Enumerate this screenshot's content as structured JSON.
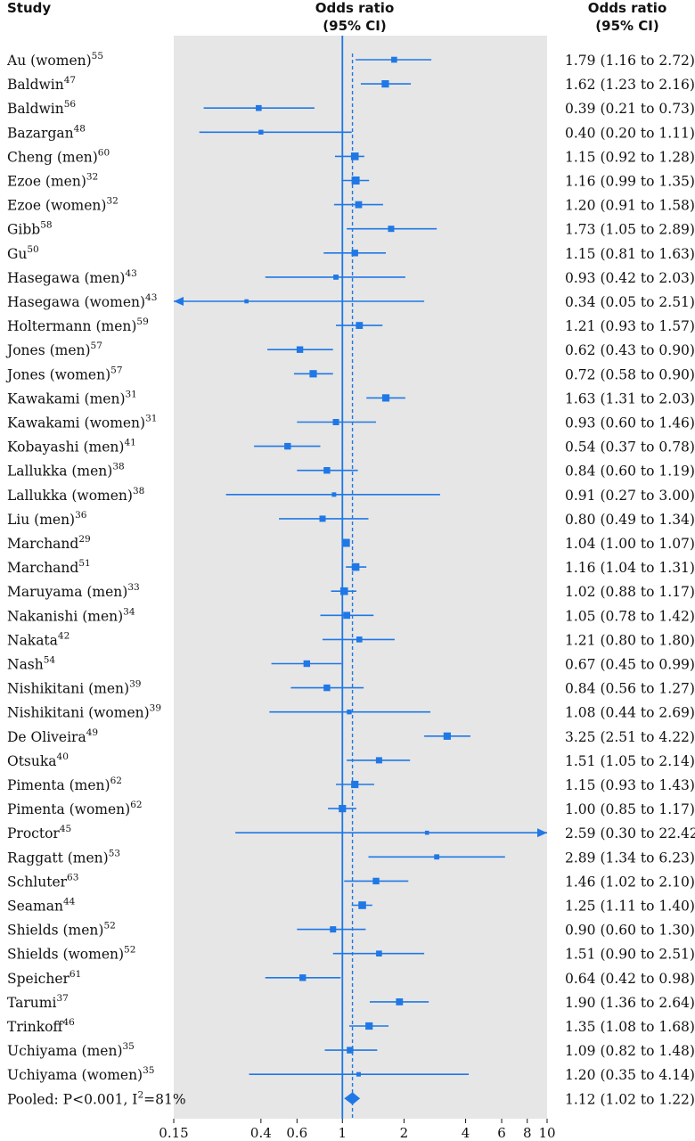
{
  "headers": {
    "study": "Study",
    "plot_line1": "Odds ratio",
    "plot_line2": "(95% CI)",
    "value_line1": "Odds ratio",
    "value_line2": "(95% CI)"
  },
  "colors": {
    "accent": "#1f78e6",
    "panel": "#e6e6e6",
    "text": "#111111"
  },
  "chart_data": {
    "type": "forest",
    "x_scale": "log",
    "xlim": [
      0.15,
      10
    ],
    "xticks": [
      0.15,
      0.4,
      0.6,
      1,
      2,
      4,
      6,
      8,
      10
    ],
    "xtick_labels": [
      "0.15",
      "0.4",
      "0.6",
      "1",
      "2",
      "4",
      "6",
      "8",
      "10"
    ],
    "null_line": 1,
    "pooled_line": 1.12,
    "studies": [
      {
        "name": "Au (women)",
        "ref": "55",
        "or": 1.79,
        "lo": 1.16,
        "hi": 2.72,
        "text": "1.79 (1.16 to 2.72)",
        "w": 0.45
      },
      {
        "name": "Baldwin",
        "ref": "47",
        "or": 1.62,
        "lo": 1.23,
        "hi": 2.16,
        "text": "1.62 (1.23 to 2.16)",
        "w": 0.65
      },
      {
        "name": "Baldwin",
        "ref": "56",
        "or": 0.39,
        "lo": 0.21,
        "hi": 0.73,
        "text": "0.39 (0.21 to 0.73)",
        "w": 0.45
      },
      {
        "name": "Bazargan",
        "ref": "48",
        "or": 0.4,
        "lo": 0.2,
        "hi": 1.11,
        "text": "0.40 (0.20 to 1.11)",
        "w": 0.3
      },
      {
        "name": "Cheng (men)",
        "ref": "60",
        "or": 1.15,
        "lo": 0.92,
        "hi": 1.28,
        "text": "1.15 (0.92 to 1.28)",
        "w": 0.7
      },
      {
        "name": "Ezoe (men)",
        "ref": "32",
        "or": 1.16,
        "lo": 0.99,
        "hi": 1.35,
        "text": "1.16 (0.99 to 1.35)",
        "w": 0.75
      },
      {
        "name": "Ezoe (women)",
        "ref": "32",
        "or": 1.2,
        "lo": 0.91,
        "hi": 1.58,
        "text": "1.20 (0.91 to 1.58)",
        "w": 0.6
      },
      {
        "name": "Gibb",
        "ref": "58",
        "or": 1.73,
        "lo": 1.05,
        "hi": 2.89,
        "text": "1.73 (1.05 to 2.89)",
        "w": 0.5
      },
      {
        "name": "Gu",
        "ref": "50",
        "or": 1.15,
        "lo": 0.81,
        "hi": 1.63,
        "text": "1.15 (0.81 to 1.63)",
        "w": 0.55
      },
      {
        "name": "Hasegawa (men)",
        "ref": "43",
        "or": 0.93,
        "lo": 0.42,
        "hi": 2.03,
        "text": "0.93 (0.42 to 2.03)",
        "w": 0.35
      },
      {
        "name": "Hasegawa (women)",
        "ref": "43",
        "or": 0.34,
        "lo": 0.05,
        "hi": 2.51,
        "text": "0.34 (0.05 to 2.51)",
        "w": 0.2
      },
      {
        "name": "Holtermann (men)",
        "ref": "59",
        "or": 1.21,
        "lo": 0.93,
        "hi": 1.57,
        "text": "1.21 (0.93 to 1.57)",
        "w": 0.6
      },
      {
        "name": "Jones (men)",
        "ref": "57",
        "or": 0.62,
        "lo": 0.43,
        "hi": 0.9,
        "text": "0.62 (0.43 to 0.90)",
        "w": 0.55
      },
      {
        "name": "Jones (women)",
        "ref": "57",
        "or": 0.72,
        "lo": 0.58,
        "hi": 0.9,
        "text": "0.72 (0.58 to 0.90)",
        "w": 0.65
      },
      {
        "name": "Kawakami (men)",
        "ref": "31",
        "or": 1.63,
        "lo": 1.31,
        "hi": 2.03,
        "text": "1.63 (1.31 to 2.03)",
        "w": 0.65
      },
      {
        "name": "Kawakami (women)",
        "ref": "31",
        "or": 0.93,
        "lo": 0.6,
        "hi": 1.46,
        "text": "0.93 (0.60 to 1.46)",
        "w": 0.5
      },
      {
        "name": "Kobayashi (men)",
        "ref": "41",
        "or": 0.54,
        "lo": 0.37,
        "hi": 0.78,
        "text": "0.54 (0.37 to 0.78)",
        "w": 0.55
      },
      {
        "name": "Lallukka (men)",
        "ref": "38",
        "or": 0.84,
        "lo": 0.6,
        "hi": 1.19,
        "text": "0.84 (0.60 to 1.19)",
        "w": 0.55
      },
      {
        "name": "Lallukka (women)",
        "ref": "38",
        "or": 0.91,
        "lo": 0.27,
        "hi": 3.0,
        "text": "0.91 (0.27 to 3.00)",
        "w": 0.25
      },
      {
        "name": "Liu (men)",
        "ref": "36",
        "or": 0.8,
        "lo": 0.49,
        "hi": 1.34,
        "text": "0.80 (0.49 to 1.34)",
        "w": 0.5
      },
      {
        "name": "Marchand",
        "ref": "29",
        "or": 1.04,
        "lo": 1.0,
        "hi": 1.07,
        "text": "1.04 (1.00 to 1.07)",
        "w": 0.75
      },
      {
        "name": "Marchand",
        "ref": "51",
        "or": 1.16,
        "lo": 1.04,
        "hi": 1.31,
        "text": "1.16 (1.04 to 1.31)",
        "w": 0.7
      },
      {
        "name": "Maruyama (men)",
        "ref": "33",
        "or": 1.02,
        "lo": 0.88,
        "hi": 1.17,
        "text": "1.02 (0.88 to 1.17)",
        "w": 0.7
      },
      {
        "name": "Nakanishi (men)",
        "ref": "34",
        "or": 1.05,
        "lo": 0.78,
        "hi": 1.42,
        "text": "1.05 (0.78 to 1.42)",
        "w": 0.6
      },
      {
        "name": "Nakata",
        "ref": "42",
        "or": 1.21,
        "lo": 0.8,
        "hi": 1.8,
        "text": "1.21 (0.80 to 1.80)",
        "w": 0.45
      },
      {
        "name": "Nash",
        "ref": "54",
        "or": 0.67,
        "lo": 0.45,
        "hi": 0.99,
        "text": "0.67 (0.45 to 0.99)",
        "w": 0.55
      },
      {
        "name": "Nishikitani (men)",
        "ref": "39",
        "or": 0.84,
        "lo": 0.56,
        "hi": 1.27,
        "text": "0.84 (0.56 to 1.27)",
        "w": 0.55
      },
      {
        "name": "Nishikitani (women)",
        "ref": "39",
        "or": 1.08,
        "lo": 0.44,
        "hi": 2.69,
        "text": "1.08 (0.44 to 2.69)",
        "w": 0.3
      },
      {
        "name": "De Oliveira",
        "ref": "49",
        "or": 3.25,
        "lo": 2.51,
        "hi": 4.22,
        "text": "3.25 (2.51 to 4.22)",
        "w": 0.65
      },
      {
        "name": "Otsuka",
        "ref": "40",
        "or": 1.51,
        "lo": 1.05,
        "hi": 2.14,
        "text": "1.51 (1.05 to 2.14)",
        "w": 0.5
      },
      {
        "name": "Pimenta (men)",
        "ref": "62",
        "or": 1.15,
        "lo": 0.93,
        "hi": 1.43,
        "text": "1.15 (0.93 to 1.43)",
        "w": 0.65
      },
      {
        "name": "Pimenta (women)",
        "ref": "62",
        "or": 1.0,
        "lo": 0.85,
        "hi": 1.17,
        "text": "1.00 (0.85 to 1.17)",
        "w": 0.65
      },
      {
        "name": "Proctor",
        "ref": "45",
        "or": 2.59,
        "lo": 0.3,
        "hi": 22.42,
        "text": "2.59 (0.30 to 22.42)",
        "w": 0.2
      },
      {
        "name": "Raggatt (men)",
        "ref": "53",
        "or": 2.89,
        "lo": 1.34,
        "hi": 6.23,
        "text": "2.89 (1.34 to 6.23)",
        "w": 0.35
      },
      {
        "name": "Schluter",
        "ref": "63",
        "or": 1.46,
        "lo": 1.02,
        "hi": 2.1,
        "text": "1.46 (1.02 to 2.10)",
        "w": 0.55
      },
      {
        "name": "Seaman",
        "ref": "44",
        "or": 1.25,
        "lo": 1.11,
        "hi": 1.4,
        "text": "1.25 (1.11 to 1.40)",
        "w": 0.7
      },
      {
        "name": "Shields (men)",
        "ref": "52",
        "or": 0.9,
        "lo": 0.6,
        "hi": 1.3,
        "text": "0.90 (0.60 to 1.30)",
        "w": 0.5
      },
      {
        "name": "Shields (women)",
        "ref": "52",
        "or": 1.51,
        "lo": 0.9,
        "hi": 2.51,
        "text": "1.51 (0.90 to 2.51)",
        "w": 0.45
      },
      {
        "name": "Speicher",
        "ref": "61",
        "or": 0.64,
        "lo": 0.42,
        "hi": 0.98,
        "text": "0.64 (0.42 to 0.98)",
        "w": 0.55
      },
      {
        "name": "Tarumi",
        "ref": "37",
        "or": 1.9,
        "lo": 1.36,
        "hi": 2.64,
        "text": "1.90 (1.36 to 2.64)",
        "w": 0.6
      },
      {
        "name": "Trinkoff",
        "ref": "46",
        "or": 1.35,
        "lo": 1.08,
        "hi": 1.68,
        "text": "1.35 (1.08 to 1.68)",
        "w": 0.65
      },
      {
        "name": "Uchiyama (men)",
        "ref": "35",
        "or": 1.09,
        "lo": 0.82,
        "hi": 1.48,
        "text": "1.09 (0.82 to 1.48)",
        "w": 0.55
      },
      {
        "name": "Uchiyama (women)",
        "ref": "35",
        "or": 1.2,
        "lo": 0.35,
        "hi": 4.14,
        "text": "1.20 (0.35 to 4.14)",
        "w": 0.25
      }
    ],
    "pooled": {
      "label_prefix": "Pooled: P<0.001, I",
      "label_sup": "2",
      "label_suffix": "=81%",
      "or": 1.12,
      "lo": 1.02,
      "hi": 1.22,
      "text": "1.12 (1.02 to 1.22)"
    }
  }
}
